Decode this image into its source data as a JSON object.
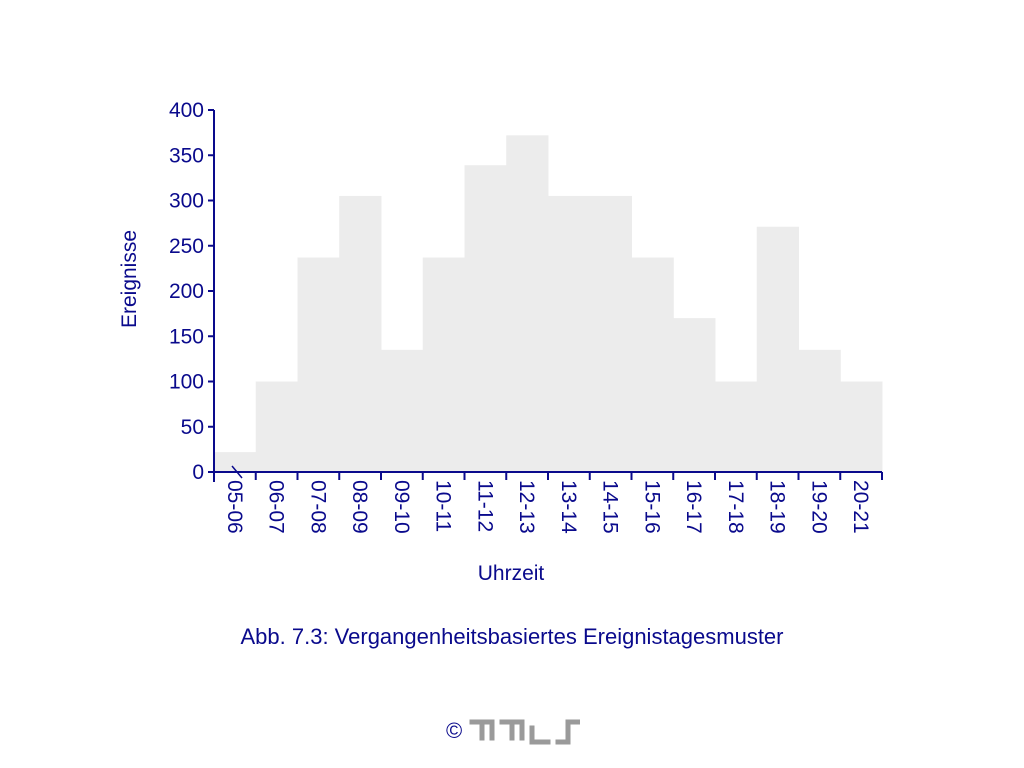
{
  "chart_data": {
    "type": "bar",
    "title": "",
    "xlabel": "Uhrzeit",
    "ylabel": "Ereignisse",
    "categories": [
      "05-06",
      "06-07",
      "07-08",
      "08-09",
      "09-10",
      "10-11",
      "11-12",
      "12-13",
      "13-14",
      "14-15",
      "15-16",
      "16-17",
      "17-18",
      "18-19",
      "19-20",
      "20-21"
    ],
    "values": [
      22,
      100,
      237,
      305,
      135,
      237,
      339,
      372,
      305,
      305,
      237,
      170,
      100,
      271,
      135,
      100
    ],
    "ylim": [
      0,
      400
    ],
    "yticks": [
      0,
      50,
      100,
      150,
      200,
      250,
      300,
      350,
      400
    ],
    "grid": false,
    "legend": "none",
    "colors": {
      "bar": "#ececec",
      "axis": "#0a0a8c",
      "text": "#0a0a8c"
    }
  },
  "caption": "Abb. 7.3: Vergangenheitsbasiertes Ereignistagesmuster",
  "footer": {
    "copyright_symbol": "©",
    "logo_icon": "mis-logo-icon",
    "logo_text": "mis"
  }
}
